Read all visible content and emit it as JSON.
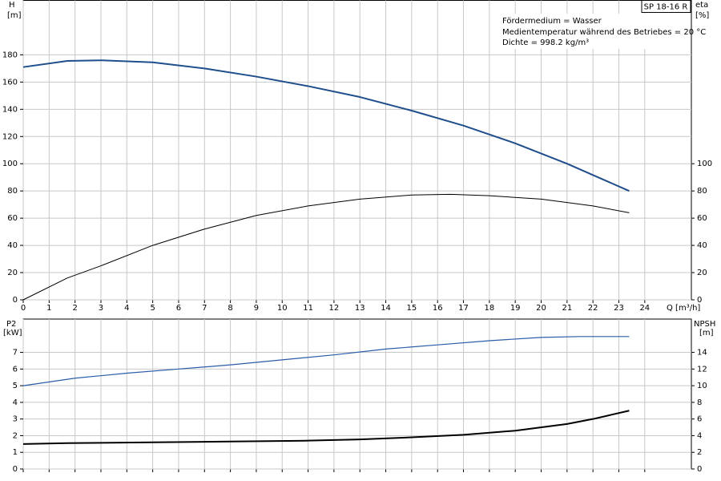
{
  "chart_data": [
    {
      "type": "line",
      "label": "SP 18-16 R",
      "annotations": [
        "Fördermedium = Wasser",
        "Medientemperatur während des Betriebes = 20 °C",
        "Dichte = 998.2 kg/m³"
      ],
      "ylabel": "H",
      "yunit": "[m]",
      "y2label": "eta",
      "y2unit": "[%]",
      "xlabel": "Q [m³/h]",
      "xlim": [
        0,
        25.8
      ],
      "xticks": [
        0,
        1,
        2,
        3,
        4,
        5,
        6,
        7,
        8,
        9,
        10,
        11,
        12,
        13,
        14,
        15,
        16,
        17,
        18,
        19,
        20,
        21,
        22,
        23,
        24
      ],
      "ylim": [
        0,
        220
      ],
      "yticks": [
        0,
        20,
        40,
        60,
        80,
        100,
        120,
        140,
        160,
        180
      ],
      "y2lim": [
        0,
        220
      ],
      "y2ticks": [
        0,
        20,
        40,
        60,
        80,
        100
      ],
      "grid": true,
      "series": [
        {
          "name": "H",
          "color": "#1f4e8c",
          "width": 2,
          "x": [
            0,
            1.7,
            3,
            5,
            7,
            9,
            11,
            13,
            15,
            17,
            19,
            21,
            23.4
          ],
          "values": [
            171,
            175.5,
            176,
            174.5,
            170,
            164,
            157,
            149,
            139,
            128,
            115,
            100,
            80
          ]
        },
        {
          "name": "eta",
          "color": "#000000",
          "width": 1,
          "axis": "y2",
          "x": [
            0,
            1.7,
            3,
            5,
            7,
            9,
            11,
            13,
            15,
            16.5,
            18,
            20,
            22,
            23.4
          ],
          "values": [
            0,
            16,
            25,
            40,
            52,
            62,
            69,
            74,
            77,
            77.5,
            76.5,
            74,
            69,
            64
          ]
        }
      ]
    },
    {
      "type": "line",
      "ylabel": "P2",
      "yunit": "[kW]",
      "y2label": "NPSH",
      "y2unit": "[m]",
      "xlim": [
        0,
        25.8
      ],
      "xticks": [
        0,
        1,
        2,
        3,
        4,
        5,
        6,
        7,
        8,
        9,
        10,
        11,
        12,
        13,
        14,
        15,
        16,
        17,
        18,
        19,
        20,
        21,
        22,
        23,
        24
      ],
      "xtick_labels": false,
      "ylim": [
        0,
        9
      ],
      "yticks": [
        0,
        1,
        2,
        3,
        4,
        5,
        6,
        7
      ],
      "y2lim": [
        0,
        18
      ],
      "y2ticks": [
        0,
        2,
        4,
        6,
        8,
        10,
        12,
        14
      ],
      "grid": true,
      "series": [
        {
          "name": "P2",
          "color": "#2a5caa",
          "width": 1.2,
          "x": [
            0,
            2,
            4,
            6,
            8,
            10,
            12,
            14,
            16,
            18,
            20,
            21.5,
            23.4
          ],
          "values": [
            5.0,
            5.45,
            5.75,
            6.0,
            6.25,
            6.55,
            6.85,
            7.2,
            7.45,
            7.7,
            7.9,
            7.95,
            7.95
          ]
        },
        {
          "name": "NPSH",
          "color": "#000000",
          "width": 2,
          "axis": "y2",
          "x": [
            0,
            1.7,
            5,
            8,
            11,
            13,
            15,
            17,
            19,
            21,
            22,
            23.4
          ],
          "values": [
            3.0,
            3.1,
            3.2,
            3.3,
            3.4,
            3.55,
            3.8,
            4.1,
            4.6,
            5.4,
            6.0,
            7.0
          ]
        }
      ]
    }
  ]
}
